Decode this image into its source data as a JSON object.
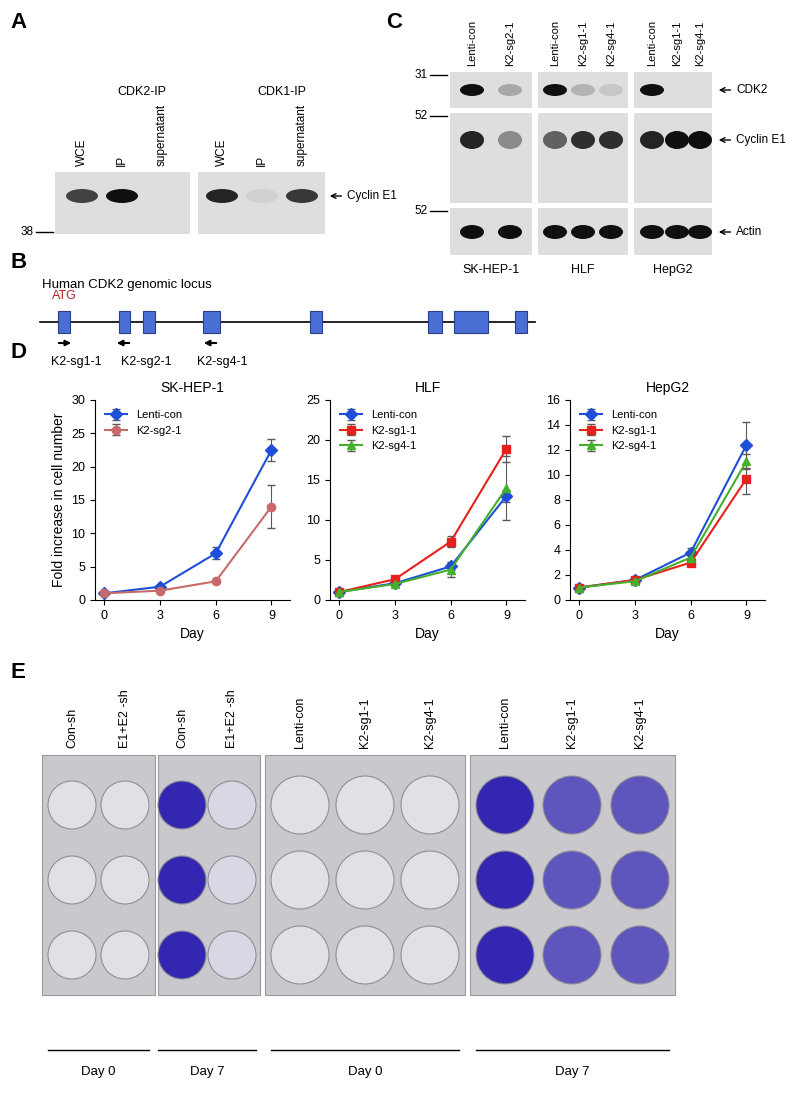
{
  "chart_data": [
    {
      "type": "line",
      "title": "SK-HEP-1",
      "x_label": "Day",
      "y_label": "Fold increase in cell number",
      "x": [
        0,
        3,
        6,
        9
      ],
      "xlim": [
        -0.5,
        10
      ],
      "xticks": [
        0,
        3,
        6,
        9
      ],
      "ylim": [
        0,
        30
      ],
      "yticks": [
        0,
        5,
        10,
        15,
        20,
        25,
        30
      ],
      "legend": "upper left",
      "series": [
        {
          "name": "Lenti-con",
          "color": "#1f4fd6",
          "marker": "diamond",
          "values": [
            1,
            2,
            7,
            22.5
          ],
          "errors": [
            0,
            0.2,
            0.9,
            1.6
          ]
        },
        {
          "name": "K2-sg2-1",
          "color": "#c96a6a",
          "marker": "circle",
          "values": [
            1,
            1.4,
            2.8,
            14
          ],
          "errors": [
            0,
            0.1,
            0.2,
            3.2
          ]
        }
      ]
    },
    {
      "type": "line",
      "title": "HLF",
      "x_label": "Day",
      "x": [
        0,
        3,
        6,
        9
      ],
      "xlim": [
        -0.5,
        10
      ],
      "xticks": [
        0,
        3,
        6,
        9
      ],
      "ylim": [
        0,
        25
      ],
      "yticks": [
        0,
        5,
        10,
        15,
        20,
        25
      ],
      "legend": "upper left",
      "series": [
        {
          "name": "Lenti-con",
          "color": "#1f4fd6",
          "marker": "diamond",
          "values": [
            1,
            2.1,
            4.2,
            13
          ],
          "errors": [
            0,
            0.1,
            0.4,
            0.8
          ]
        },
        {
          "name": "K2-sg1-1",
          "color": "#e8201c",
          "marker": "square",
          "values": [
            1,
            2.6,
            7.3,
            18.9
          ],
          "errors": [
            0,
            0.2,
            0.7,
            1.6
          ]
        },
        {
          "name": "K2-sg4-1",
          "color": "#44b02c",
          "marker": "triangle",
          "values": [
            1,
            2,
            3.8,
            14
          ],
          "errors": [
            0,
            0.1,
            0.9,
            4
          ]
        }
      ]
    },
    {
      "type": "line",
      "title": "HepG2",
      "x_label": "Day",
      "x": [
        0,
        3,
        6,
        9
      ],
      "xlim": [
        -0.5,
        10
      ],
      "xticks": [
        0,
        3,
        6,
        9
      ],
      "ylim": [
        0,
        16
      ],
      "yticks": [
        0,
        2,
        4,
        6,
        8,
        10,
        12,
        14,
        16
      ],
      "legend": "upper left",
      "series": [
        {
          "name": "Lenti-con",
          "color": "#1f4fd6",
          "marker": "diamond",
          "values": [
            1,
            1.6,
            3.8,
            12.4
          ],
          "errors": [
            0,
            0.1,
            0.4,
            1.8
          ]
        },
        {
          "name": "K2-sg1-1",
          "color": "#e8201c",
          "marker": "square",
          "values": [
            1,
            1.6,
            3,
            9.7
          ],
          "errors": [
            0,
            0.1,
            0.2,
            1.2
          ]
        },
        {
          "name": "K2-sg4-1",
          "color": "#44b02c",
          "marker": "triangle",
          "values": [
            1,
            1.5,
            3.4,
            11.1
          ],
          "errors": [
            0,
            0.1,
            0.3,
            0.6
          ]
        }
      ]
    }
  ],
  "panels": {
    "A": {
      "letter": "A",
      "band_label": "Cyclin E1",
      "size_marker": 38,
      "groups": [
        {
          "label": "CDK2-IP",
          "lanes": [
            "WCE",
            "IP",
            "supernatant"
          ],
          "intensity": [
            0.75,
            1.0,
            0.0
          ]
        },
        {
          "label": "CDK1-IP",
          "lanes": [
            "WCE",
            "IP",
            "supernatant"
          ],
          "intensity": [
            0.9,
            0.05,
            0.8
          ]
        }
      ]
    },
    "B": {
      "letter": "B",
      "title": "Human CDK2 genomic locus",
      "start_codon": "ATG",
      "guides": [
        {
          "name": "K2-sg1-1",
          "exon": 1,
          "direction": "right"
        },
        {
          "name": "K2-sg2-1",
          "exon": 2,
          "direction": "left"
        },
        {
          "name": "K2-sg4-1",
          "exon": 4,
          "direction": "left"
        }
      ]
    },
    "C": {
      "letter": "C",
      "cell_lines": [
        {
          "name": "SK-HEP-1",
          "lanes": [
            "Lenti-con",
            "K2-sg2-1"
          ]
        },
        {
          "name": "HLF",
          "lanes": [
            "Lenti-con",
            "K2-sg1-1",
            "K2-sg4-1"
          ]
        },
        {
          "name": "HepG2",
          "lanes": [
            "Lenti-con",
            "K2-sg1-1",
            "K2-sg4-1"
          ]
        }
      ],
      "rows": [
        {
          "label": "CDK2",
          "size_marker": 31,
          "intensity": [
            [
              1,
              0.25
            ],
            [
              1,
              0.2,
              0.1
            ],
            [
              1,
              0,
              0
            ]
          ]
        },
        {
          "label": "Cyclin E1",
          "size_marker": 52,
          "intensity": [
            [
              0.9,
              0.4
            ],
            [
              0.6,
              0.85,
              0.85
            ],
            [
              0.9,
              1,
              1
            ]
          ]
        },
        {
          "label": "Actin",
          "size_marker": 52,
          "intensity": [
            [
              1,
              1
            ],
            [
              1,
              1,
              1
            ],
            [
              1,
              1,
              1
            ]
          ]
        }
      ]
    },
    "D": {
      "letter": "D"
    },
    "E": {
      "letter": "E",
      "plates": [
        {
          "days": [
            {
              "label": "Day 0",
              "conditions": [
                "Con-sh",
                "E1+E2 -sh"
              ],
              "staining": [
                0,
                0
              ]
            },
            {
              "label": "Day 7",
              "conditions": [
                "Con-sh",
                "E1+E2 -sh"
              ],
              "staining": [
                1,
                0.05
              ]
            }
          ]
        },
        {
          "days": [
            {
              "label": "Day 0",
              "conditions": [
                "Lenti-con",
                "K2-sg1-1",
                "K2-sg4-1"
              ],
              "staining": [
                0,
                0,
                0
              ]
            },
            {
              "label": "Day 7",
              "conditions": [
                "Lenti-con",
                "K2-sg1-1",
                "K2-sg4-1"
              ],
              "staining": [
                1,
                0.75,
                0.75
              ]
            }
          ]
        }
      ]
    }
  }
}
